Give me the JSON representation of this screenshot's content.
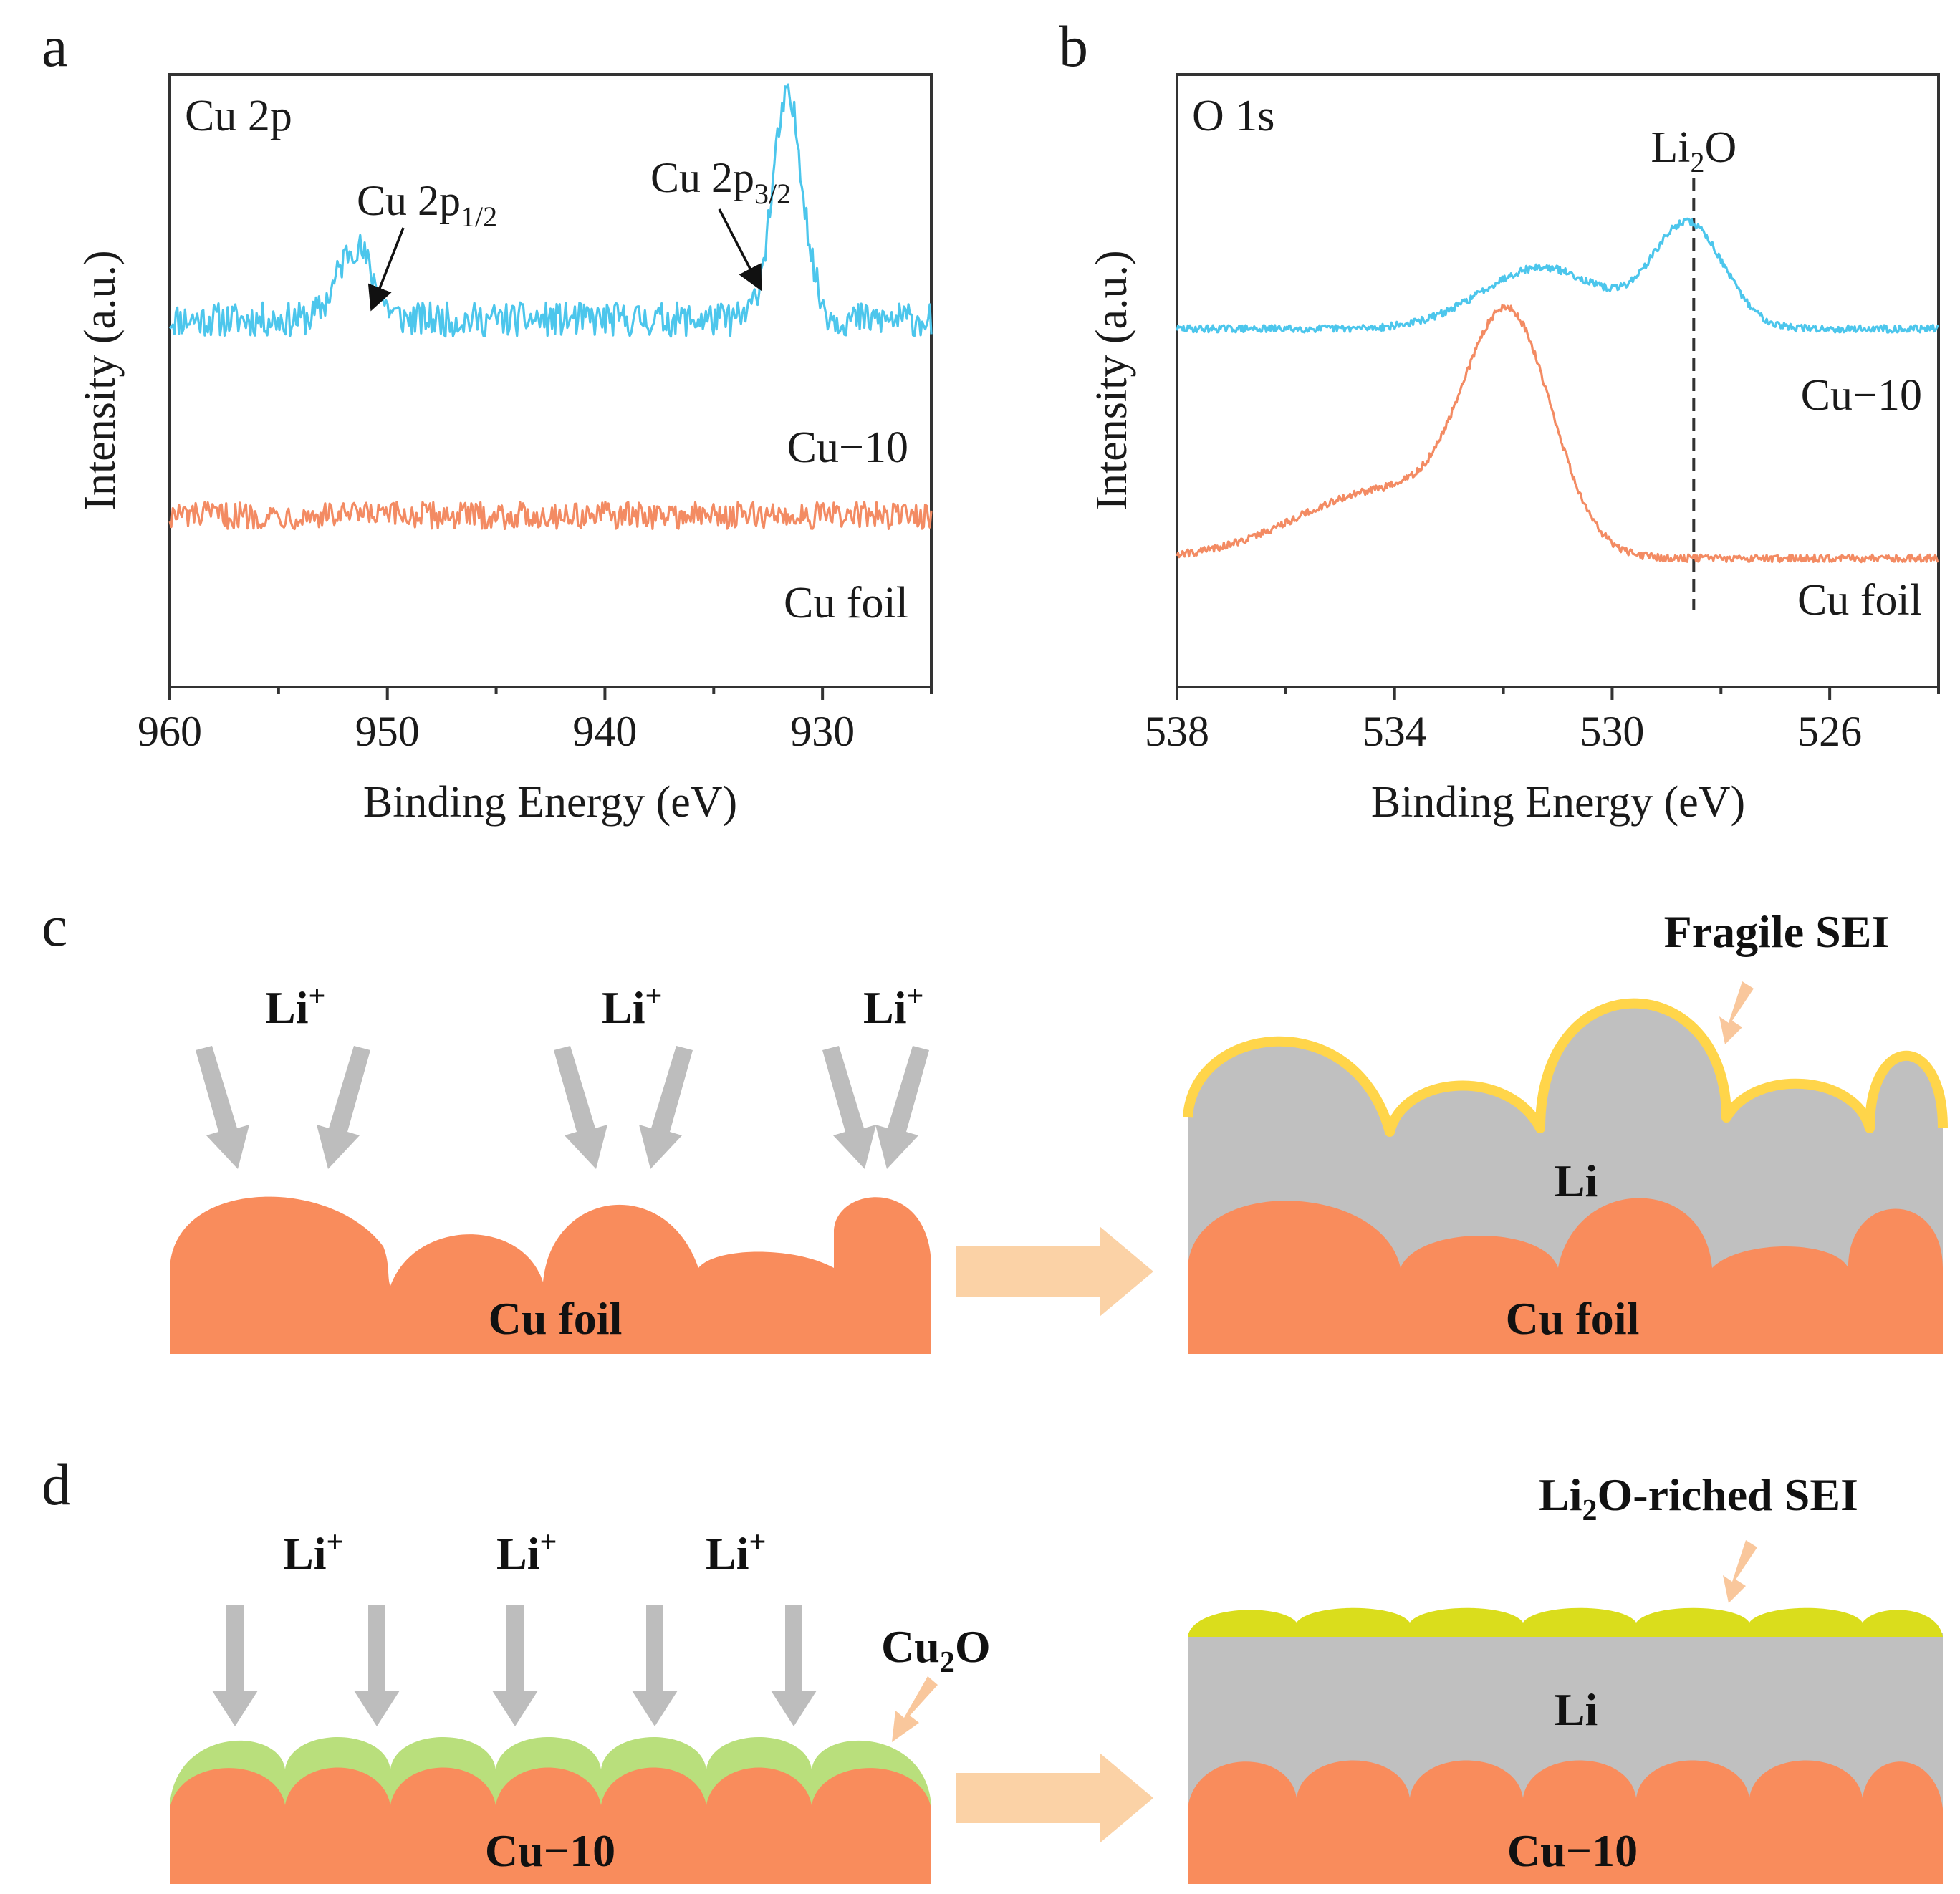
{
  "colors": {
    "cu10": "#4cc6ec",
    "cufoil": "#f38b63",
    "copper": "#f98c5c",
    "li": "#c0c0c0",
    "fragile_sei": "#ffd54a",
    "li2o_sei": "#dadd1c",
    "cu2o": "#b9df7c",
    "li_arrow": "#bdbdbd",
    "process_arrow": "#fbd2a6",
    "pointer_arrow": "#f9c79c",
    "dash": "#333333"
  },
  "panels": {
    "a_label": "a",
    "b_label": "b",
    "c_label": "c",
    "d_label": "d"
  },
  "chart_data": [
    {
      "type": "line",
      "panel": "a",
      "title": "Cu 2p",
      "xlabel": "Binding Energy (eV)",
      "ylabel": "Intensity (a.u.)",
      "xlim": [
        960,
        925
      ],
      "ylim": [
        0,
        1
      ],
      "xticks": [
        "960",
        "950",
        "940",
        "930"
      ],
      "xtick_values": [
        960,
        950,
        940,
        930
      ],
      "grid": false,
      "series": [
        {
          "name": "Cu−10",
          "label": "Cu−10",
          "color": "#4cc6ec",
          "baseline": 0.6,
          "noise": 0.028,
          "peaks": [
            {
              "center": 951.5,
              "height": 0.12,
              "width": 0.8
            },
            {
              "center": 931.6,
              "height": 0.36,
              "width": 0.7
            }
          ]
        },
        {
          "name": "Cu foil",
          "label": "Cu foil",
          "color": "#f38b63",
          "baseline": 0.28,
          "noise": 0.022,
          "peaks": []
        }
      ],
      "annotations": [
        {
          "text": "Cu 2p",
          "sub": "1/2",
          "points_to": 951.5
        },
        {
          "text": "Cu 2p",
          "sub": "3/2",
          "points_to": 931.6
        }
      ]
    },
    {
      "type": "line",
      "panel": "b",
      "title": "O 1s",
      "xlabel": "Binding Energy (eV)",
      "ylabel": "Intensity (a.u.)",
      "xlim": [
        538,
        524
      ],
      "ylim": [
        0,
        1
      ],
      "xticks": [
        "538",
        "534",
        "530",
        "526"
      ],
      "xtick_values": [
        538,
        534,
        530,
        526
      ],
      "grid": false,
      "reference_line": {
        "x": 528.5,
        "label": "Li",
        "sub": "2",
        "label_after": "O"
      },
      "series": [
        {
          "name": "Cu−10",
          "label": "Cu−10",
          "color": "#4cc6ec",
          "baseline": 0.585,
          "noise": 0.006,
          "peaks": [
            {
              "center": 531.3,
              "height": 0.1,
              "width": 1.1
            },
            {
              "center": 528.6,
              "height": 0.17,
              "width": 0.65
            }
          ]
        },
        {
          "name": "Cu foil",
          "label": "Cu foil",
          "color": "#f38b63",
          "baseline": 0.21,
          "noise": 0.006,
          "peaks": [
            {
              "center": 531.9,
              "height": 0.37,
              "width": 0.8
            },
            {
              "center": 534.2,
              "height": 0.11,
              "width": 1.6
            }
          ]
        }
      ]
    }
  ],
  "schematic": {
    "li_ion_base": "Li",
    "li_ion_sup": "+",
    "c": {
      "substrate_label": "Cu foil",
      "result_substrate_label": "Cu foil",
      "li_label": "Li",
      "sei_label": "Fragile SEI"
    },
    "d": {
      "substrate_label": "Cu−10",
      "result_substrate_label": "Cu−10",
      "li_label": "Li",
      "cu2o_label": "Cu",
      "cu2o_sub": "2",
      "cu2o_after": "O",
      "sei_label_pre": "Li",
      "sei_label_sub": "2",
      "sei_label_after": "O-riched SEI"
    }
  }
}
